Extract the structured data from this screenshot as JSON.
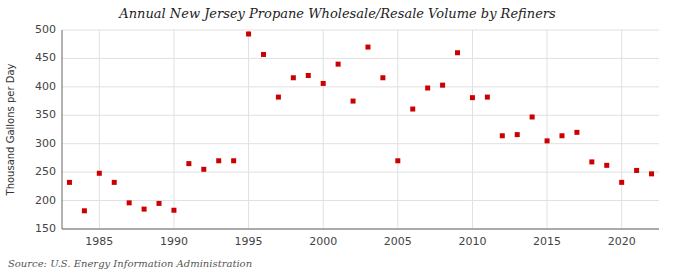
{
  "chart_data": {
    "type": "scatter",
    "title": "Annual New Jersey Propane Wholesale/Resale Volume by Refiners",
    "y_label": "Thousand Gallons per Day",
    "annotations": [
      "Source: U.S. Energy Information Administration"
    ],
    "x": [
      1983,
      1984,
      1985,
      1986,
      1987,
      1988,
      1989,
      1990,
      1991,
      1992,
      1993,
      1994,
      1995,
      1996,
      1997,
      1998,
      1999,
      2000,
      2001,
      2002,
      2003,
      2004,
      2005,
      2006,
      2007,
      2008,
      2009,
      2010,
      2011,
      2012,
      2013,
      2014,
      2015,
      2016,
      2017,
      2018,
      2019,
      2020,
      2021,
      2022
    ],
    "values": [
      232,
      182,
      248,
      232,
      196,
      185,
      195,
      183,
      265,
      255,
      270,
      270,
      493,
      457,
      382,
      416,
      420,
      406,
      440,
      375,
      470,
      416,
      270,
      361,
      398,
      403,
      460,
      381,
      382,
      314,
      316,
      347,
      305,
      314,
      320,
      268,
      262,
      232,
      253,
      247
    ],
    "color": "#cc0000",
    "marker": "square",
    "xlim": [
      1982.5,
      2022.5
    ],
    "xticks": [
      1985,
      1990,
      1995,
      2000,
      2005,
      2010,
      2015,
      2020
    ],
    "ylim": [
      150,
      500
    ],
    "yticks": [
      150,
      200,
      250,
      300,
      350,
      400,
      450,
      500
    ],
    "grid": true
  }
}
